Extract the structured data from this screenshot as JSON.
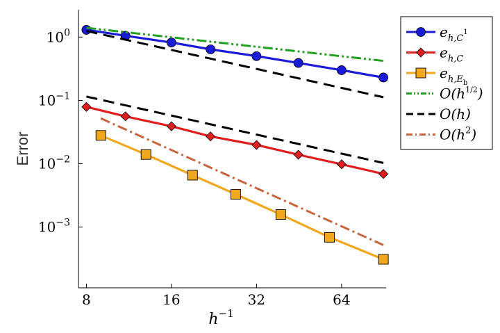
{
  "chart_data": {
    "type": "line",
    "title": "",
    "xlabel_base": "h",
    "xlabel_exp": "−1",
    "ylabel": "Error",
    "xscale": "log2",
    "yscale": "log10",
    "xlim": [
      7.5,
      92
    ],
    "ylim": [
      0.00011,
      2.7
    ],
    "xticks": [
      {
        "value": 8,
        "label": "8"
      },
      {
        "value": 16,
        "label": "16"
      },
      {
        "value": 32,
        "label": "32"
      },
      {
        "value": 64,
        "label": "64"
      }
    ],
    "yticks": [
      {
        "value": 1,
        "base": "10",
        "exp": "0"
      },
      {
        "value": 0.1,
        "base": "10",
        "exp": "−1"
      },
      {
        "value": 0.01,
        "base": "10",
        "exp": "−2"
      },
      {
        "value": 0.001,
        "base": "10",
        "exp": "−3"
      }
    ],
    "legend_position": "top-right",
    "series": [
      {
        "name": "e_{h,C^1}",
        "legend": {
          "base": "e",
          "sub": "h,C",
          "sup": "1"
        },
        "color": "#1a1ad9",
        "marker": "circle",
        "linestyle": "solid",
        "x": [
          8,
          11,
          16,
          22,
          32,
          45,
          64,
          90
        ],
        "y": [
          1.3,
          1.05,
          0.82,
          0.64,
          0.5,
          0.39,
          0.3,
          0.23
        ]
      },
      {
        "name": "e_{h,C}",
        "legend": {
          "base": "e",
          "sub": "h,C",
          "sup": ""
        },
        "color": "#e01e1e",
        "marker": "diamond",
        "linestyle": "solid",
        "x": [
          8,
          11,
          16,
          22,
          32,
          45,
          64,
          90
        ],
        "y": [
          0.079,
          0.056,
          0.039,
          0.027,
          0.0198,
          0.0139,
          0.0098,
          0.0069
        ]
      },
      {
        "name": "e_{h,E_b}",
        "legend": {
          "base": "e",
          "sub": "h,E",
          "subsub": "b"
        },
        "color": "#f2a81e",
        "marker": "square",
        "linestyle": "solid",
        "x": [
          9,
          13,
          19,
          27,
          39,
          58,
          90
        ],
        "y": [
          0.028,
          0.014,
          0.0066,
          0.0033,
          0.00158,
          0.00069,
          0.00031
        ]
      },
      {
        "name": "O(h^{1/2})",
        "legend": {
          "text": "O(h",
          "frac": "1/2",
          "close": ")"
        },
        "color": "#22a022",
        "marker": "none",
        "linestyle": "dashdotdot",
        "x": [
          8,
          90
        ],
        "y": [
          1.4,
          0.42
        ]
      },
      {
        "name": "O(h)",
        "legend": {
          "text": "O(h)"
        },
        "color": "#000000",
        "marker": "none",
        "linestyle": "dashed",
        "x": [
          8,
          90
        ],
        "y": [
          1.25,
          0.112
        ]
      },
      {
        "name": "O(h)",
        "legend": null,
        "color": "#000000",
        "marker": "none",
        "linestyle": "dashed",
        "x": [
          8,
          90
        ],
        "y": [
          0.115,
          0.0103
        ]
      },
      {
        "name": "O(h^2)",
        "legend": {
          "text": "O(h",
          "sup": "2",
          "close": ")"
        },
        "color": "#c8643c",
        "marker": "none",
        "linestyle": "dashdot",
        "x": [
          9,
          90
        ],
        "y": [
          0.052,
          0.00052
        ]
      }
    ]
  }
}
